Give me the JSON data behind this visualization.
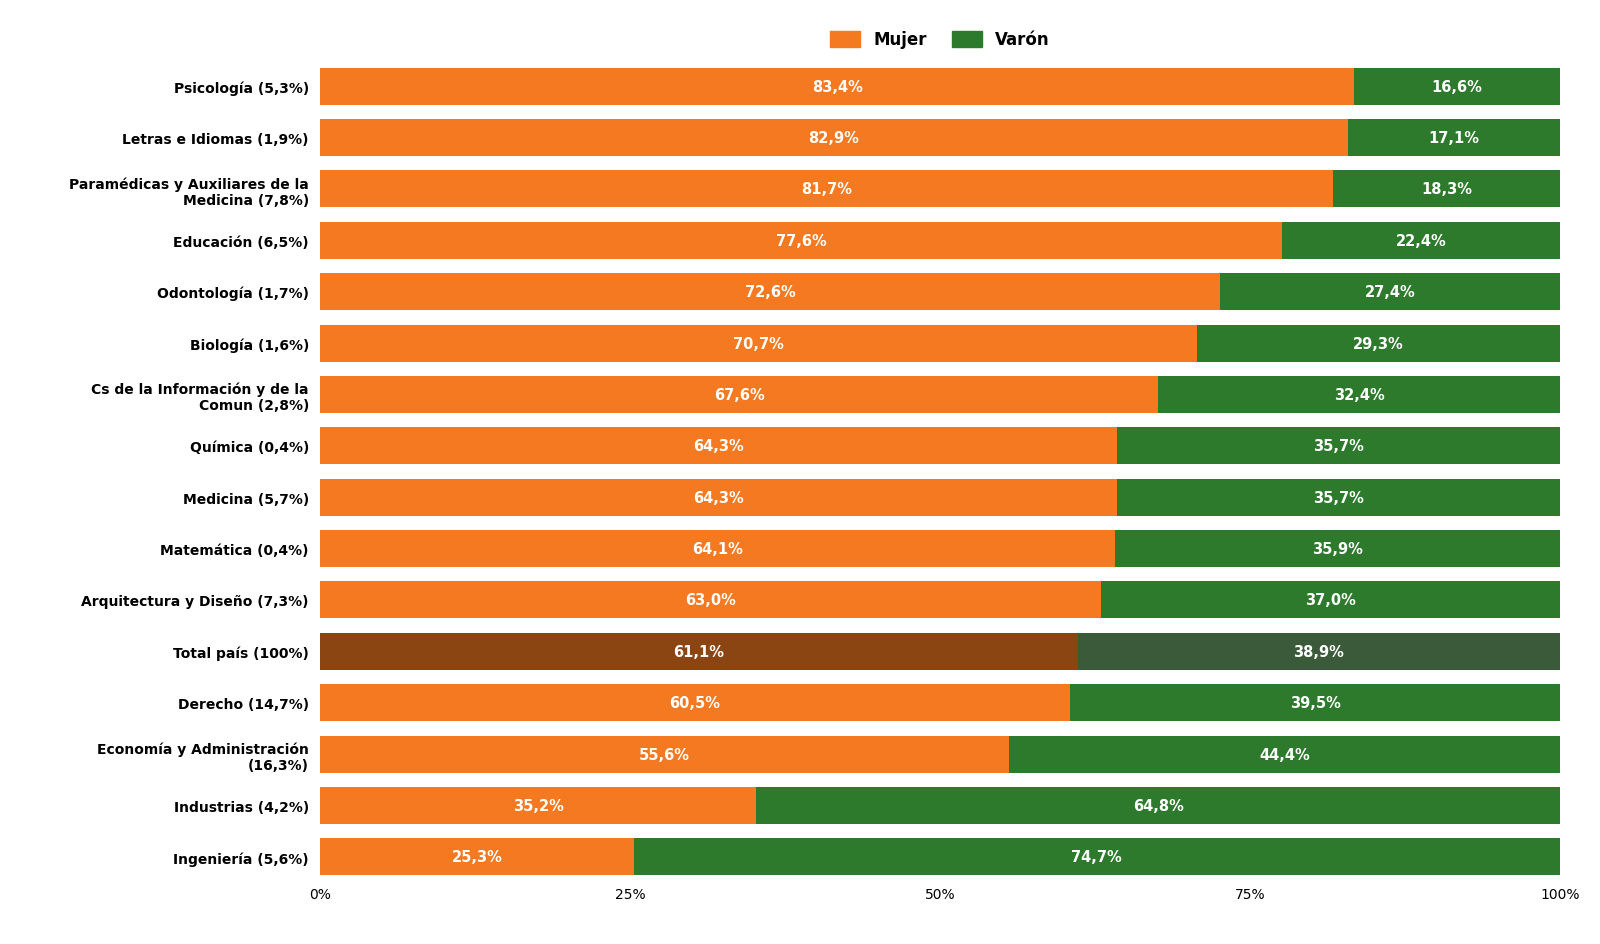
{
  "categories": [
    "Ingeniería (5,6%)",
    "Industrias (4,2%)",
    "Economía y Administración\n(16,3%)",
    "Derecho (14,7%)",
    "Total país (100%)",
    "Arquitectura y Diseño (7,3%)",
    "Matemática (0,4%)",
    "Medicina (5,7%)",
    "Química (0,4%)",
    "Cs de la Información y de la\nComun (2,8%)",
    "Biología (1,6%)",
    "Odontología (1,7%)",
    "Educación (6,5%)",
    "Paramédicas y Auxiliares de la\nMedicina (7,8%)",
    "Letras e Idiomas (1,9%)",
    "Psicología (5,3%)"
  ],
  "mujer": [
    25.3,
    35.2,
    55.6,
    60.5,
    61.1,
    63.0,
    64.1,
    64.3,
    64.3,
    67.6,
    70.7,
    72.6,
    77.6,
    81.7,
    82.9,
    83.4
  ],
  "varon": [
    74.7,
    64.8,
    44.4,
    39.5,
    38.9,
    37.0,
    35.9,
    35.7,
    35.7,
    32.4,
    29.3,
    27.4,
    22.4,
    18.3,
    17.1,
    16.6
  ],
  "mujer_labels": [
    "25,3%",
    "35,2%",
    "55,6%",
    "60,5%",
    "61,1%",
    "63,0%",
    "64,1%",
    "64,3%",
    "64,3%",
    "67,6%",
    "70,7%",
    "72,6%",
    "77,6%",
    "81,7%",
    "82,9%",
    "83,4%"
  ],
  "varon_labels": [
    "74,7%",
    "64,8%",
    "44,4%",
    "39,5%",
    "38,9%",
    "37,0%",
    "35,9%",
    "35,7%",
    "35,7%",
    "32,4%",
    "29,3%",
    "27,4%",
    "22,4%",
    "18,3%",
    "17,1%",
    "16,6%"
  ],
  "color_mujer": "#F47920",
  "color_varon": "#2D7A2D",
  "color_total_mujer": "#8B4513",
  "color_total_varon": "#3A5A3A",
  "background_color": "#FFFFFF",
  "bar_height": 0.72,
  "legend_mujer": "Mujer",
  "legend_varon": "Varón",
  "xlabel_ticks": [
    "0%",
    "25%",
    "50%",
    "75%",
    "100%"
  ],
  "xlabel_values": [
    0,
    25,
    50,
    75,
    100
  ],
  "total_index": 4,
  "text_fontsize": 10.5,
  "ylabel_fontsize": 10.0
}
